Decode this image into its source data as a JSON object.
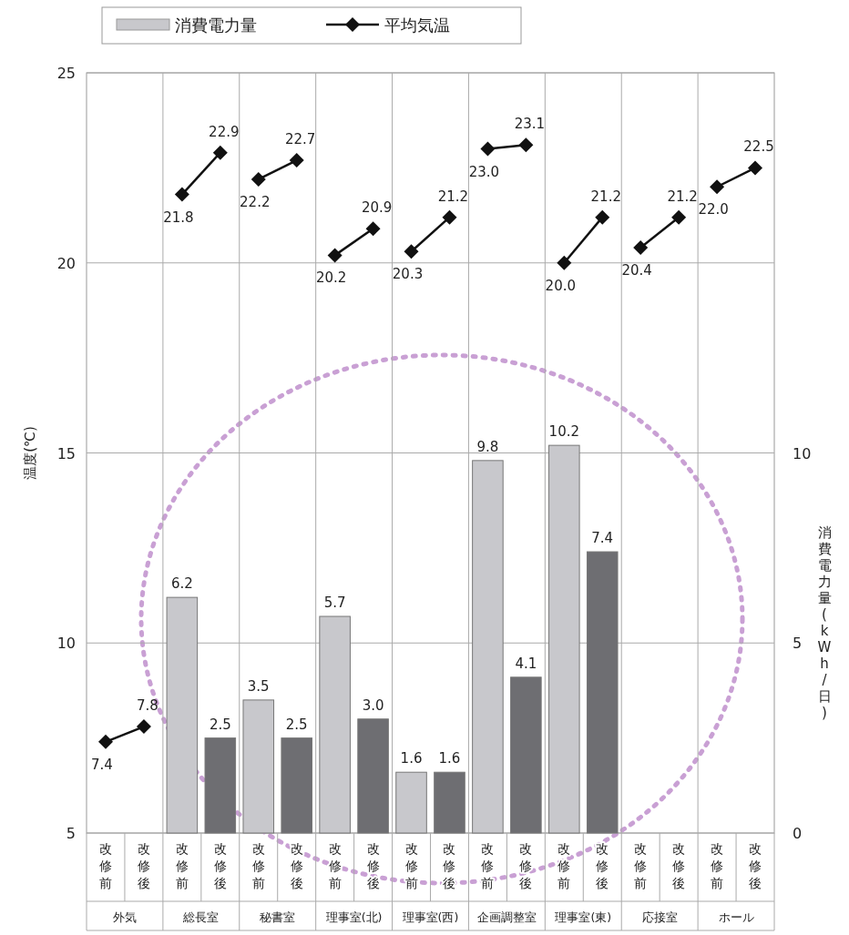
{
  "chart_data": {
    "type": "bar",
    "ylabel": "温度(℃)",
    "y2label": "消費電力量(kWh/日)",
    "categories": [
      "改修前",
      "改修後",
      "改修前",
      "改修後",
      "改修前",
      "改修後",
      "改修前",
      "改修後",
      "改修前",
      "改修後",
      "改修前",
      "改修後",
      "改修前",
      "改修後",
      "改修前",
      "改修後",
      "改修前",
      "改修後"
    ],
    "annotations": [
      "外気",
      "総長室",
      "秘書室",
      "理事室(北)",
      "理事室(西)",
      "企画調整室",
      "理事室(東)",
      "応接室",
      "ホール"
    ],
    "series": [
      {
        "name": "消費電力量",
        "axis": "y2",
        "color": "#c8c8cc",
        "colors": [
          null,
          null,
          "#c8c8cc",
          "#6e6e72",
          "#c8c8cc",
          "#6e6e72",
          "#c8c8cc",
          "#6e6e72",
          "#c8c8cc",
          "#6e6e72",
          "#c8c8cc",
          "#6e6e72",
          "#c8c8cc",
          "#6e6e72",
          null,
          null,
          null,
          null
        ],
        "values": [
          null,
          null,
          6.2,
          2.5,
          3.5,
          2.5,
          5.7,
          3.0,
          1.6,
          1.6,
          9.8,
          4.1,
          10.2,
          7.4,
          null,
          null,
          null,
          null
        ],
        "value_labels": [
          null,
          null,
          "6.2",
          "2.5",
          "3.5",
          "2.5",
          "5.7",
          "3.0",
          "1.6",
          "1.6",
          "9.8",
          "4.1",
          "10.2",
          "7.4",
          null,
          null,
          null,
          null
        ]
      },
      {
        "name": "平均気温",
        "type": "line",
        "color": "#111111",
        "values": [
          7.4,
          7.8,
          null,
          null,
          null,
          null,
          null,
          null,
          null,
          null,
          null,
          null,
          null,
          null,
          null,
          null,
          null,
          null
        ]
      },
      {
        "type": "line",
        "color": "#111111",
        "values": [
          null,
          null,
          21.8,
          22.9,
          null,
          null,
          null,
          null,
          null,
          null,
          null,
          null,
          null,
          null,
          null,
          null,
          null,
          null
        ]
      },
      {
        "type": "line",
        "color": "#111111",
        "values": [
          null,
          null,
          null,
          null,
          22.2,
          22.7,
          null,
          null,
          null,
          null,
          null,
          null,
          null,
          null,
          null,
          null,
          null,
          null
        ]
      },
      {
        "type": "line",
        "color": "#111111",
        "values": [
          null,
          null,
          null,
          null,
          null,
          null,
          20.2,
          20.9,
          null,
          null,
          null,
          null,
          null,
          null,
          null,
          null,
          null,
          null
        ]
      },
      {
        "type": "line",
        "color": "#111111",
        "values": [
          null,
          null,
          null,
          null,
          null,
          null,
          null,
          null,
          20.3,
          21.2,
          null,
          null,
          null,
          null,
          null,
          null,
          null,
          null
        ]
      },
      {
        "type": "line",
        "color": "#111111",
        "values": [
          null,
          null,
          null,
          null,
          null,
          null,
          null,
          null,
          null,
          null,
          23.0,
          23.1,
          null,
          null,
          null,
          null,
          null,
          null
        ],
        "value_labels": [
          null,
          null,
          null,
          null,
          null,
          null,
          null,
          null,
          null,
          null,
          "23.0",
          "23.1",
          null,
          null,
          null,
          null,
          null,
          null
        ]
      },
      {
        "type": "line",
        "color": "#111111",
        "values": [
          null,
          null,
          null,
          null,
          null,
          null,
          null,
          null,
          null,
          null,
          null,
          null,
          20.0,
          21.2,
          null,
          null,
          null,
          null
        ],
        "value_labels": [
          null,
          null,
          null,
          null,
          null,
          null,
          null,
          null,
          null,
          null,
          null,
          null,
          "20.0",
          "21.2",
          null,
          null,
          null,
          null
        ]
      },
      {
        "type": "line",
        "color": "#111111",
        "values": [
          null,
          null,
          null,
          null,
          null,
          null,
          null,
          null,
          null,
          null,
          null,
          null,
          null,
          null,
          20.4,
          21.2,
          null,
          null
        ]
      },
      {
        "type": "line",
        "color": "#111111",
        "values": [
          null,
          null,
          null,
          null,
          null,
          null,
          null,
          null,
          null,
          null,
          null,
          null,
          null,
          null,
          null,
          null,
          22.0,
          22.5
        ],
        "value_labels": [
          null,
          null,
          null,
          null,
          null,
          null,
          null,
          null,
          null,
          null,
          null,
          null,
          null,
          null,
          null,
          null,
          "22.0",
          "22.5"
        ]
      }
    ],
    "ylim": [
      5,
      25
    ],
    "yticks": [
      5,
      10,
      15,
      20,
      25
    ],
    "y2lim": [
      0,
      20
    ],
    "y2ticks": [
      0,
      5,
      10
    ],
    "grid": true,
    "legend": "top",
    "marker": "diamond",
    "data_labels": true
  }
}
